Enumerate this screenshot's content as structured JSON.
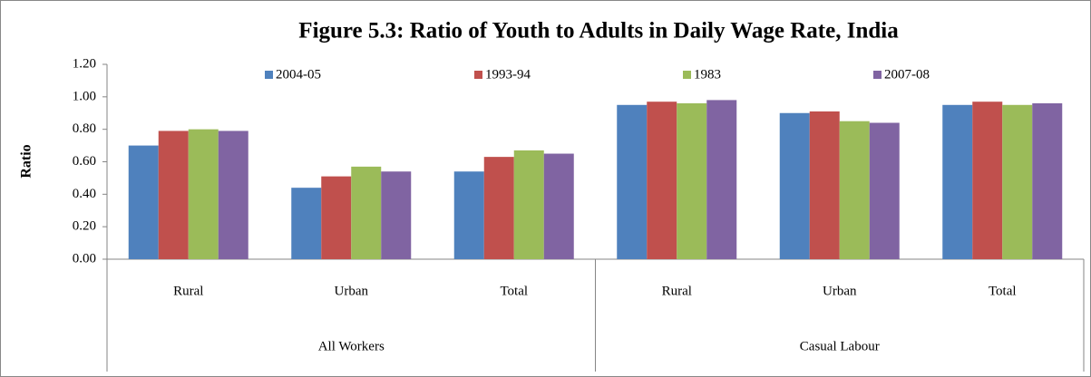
{
  "chart_data": {
    "type": "bar",
    "title": "Figure 5.3: Ratio of Youth to Adults in Daily Wage Rate, India",
    "y_label": "Ratio",
    "groups": [
      {
        "name": "All Workers",
        "categories": [
          "Rural",
          "Urban",
          "Total"
        ]
      },
      {
        "name": "Casual Labour",
        "categories": [
          "Rural",
          "Urban",
          "Total"
        ]
      }
    ],
    "series": [
      {
        "name": "2004-05",
        "color": "#4f81bd",
        "values": [
          0.7,
          0.44,
          0.54,
          0.95,
          0.9,
          0.95
        ]
      },
      {
        "name": "1993-94",
        "color": "#c0504d",
        "values": [
          0.79,
          0.51,
          0.63,
          0.97,
          0.91,
          0.97
        ]
      },
      {
        "name": "1983",
        "color": "#9bbb59",
        "values": [
          0.8,
          0.57,
          0.67,
          0.96,
          0.85,
          0.95
        ]
      },
      {
        "name": "2007-08",
        "color": "#8064a2",
        "values": [
          0.79,
          0.54,
          0.65,
          0.98,
          0.84,
          0.96
        ]
      }
    ],
    "ylim": [
      0,
      1.2
    ],
    "yticks": [
      {
        "value": 0,
        "label": "0.00"
      },
      {
        "value": 0.2,
        "label": "0.20"
      },
      {
        "value": 0.4,
        "label": "0.40"
      },
      {
        "value": 0.6,
        "label": "0.60"
      },
      {
        "value": 0.8,
        "label": "0.80"
      },
      {
        "value": 1.0,
        "label": "1.00"
      },
      {
        "value": 1.2,
        "label": "1.20"
      }
    ],
    "legend": "top"
  }
}
